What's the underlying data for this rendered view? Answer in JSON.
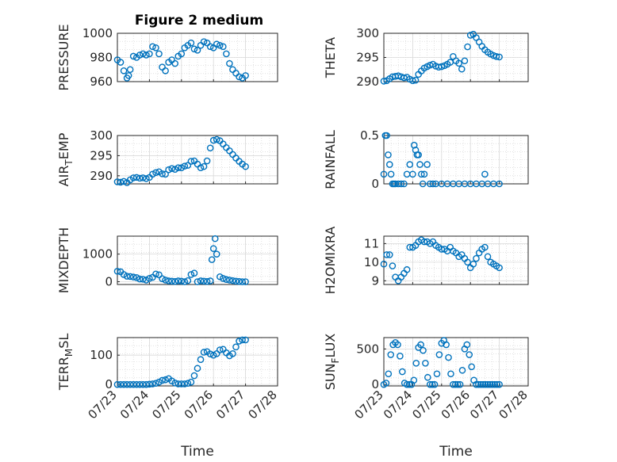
{
  "figure_title": "Figure 2 medium",
  "marker_color": "#0072bd",
  "chart_data": [
    {
      "type": "scatter",
      "ylabel": "PRESSURE",
      "ylim": [
        960,
        1000
      ],
      "yticks": [
        960,
        980,
        1000
      ],
      "xlim": [
        0,
        5
      ],
      "xtick_labels": [],
      "xlabel": "",
      "grid": true,
      "x": [
        0.0,
        0.1,
        0.2,
        0.3,
        0.35,
        0.4,
        0.5,
        0.6,
        0.7,
        0.8,
        0.9,
        1.0,
        1.1,
        1.2,
        1.3,
        1.4,
        1.5,
        1.6,
        1.7,
        1.8,
        1.9,
        2.0,
        2.1,
        2.2,
        2.3,
        2.4,
        2.5,
        2.6,
        2.7,
        2.8,
        2.9,
        3.0,
        3.1,
        3.2,
        3.3,
        3.4,
        3.5,
        3.6,
        3.7,
        3.8,
        3.9,
        4.0
      ],
      "y": [
        978,
        976,
        969,
        963,
        965,
        970,
        981,
        980,
        982,
        983,
        982,
        983,
        989,
        988,
        983,
        972,
        969,
        976,
        978,
        975,
        981,
        983,
        988,
        990,
        992,
        987,
        986,
        990,
        993,
        992,
        989,
        988,
        991,
        990,
        989,
        983,
        975,
        970,
        967,
        964,
        963,
        965
      ]
    },
    {
      "type": "scatter",
      "ylabel": "THETA",
      "ylim": [
        290,
        300
      ],
      "yticks": [
        290,
        295,
        300
      ],
      "xlim": [
        0,
        5
      ],
      "xtick_labels": [],
      "xlabel": "",
      "grid": true,
      "x": [
        0.0,
        0.1,
        0.2,
        0.3,
        0.4,
        0.5,
        0.6,
        0.7,
        0.8,
        0.9,
        1.0,
        1.1,
        1.2,
        1.3,
        1.4,
        1.5,
        1.6,
        1.7,
        1.8,
        1.9,
        2.0,
        2.1,
        2.2,
        2.3,
        2.4,
        2.5,
        2.6,
        2.7,
        2.8,
        2.9,
        3.0,
        3.1,
        3.2,
        3.3,
        3.4,
        3.5,
        3.6,
        3.7,
        3.8,
        3.9,
        4.0
      ],
      "y": [
        290.1,
        290.2,
        290.6,
        291.0,
        291.1,
        291.2,
        291.0,
        290.8,
        290.9,
        290.5,
        290.2,
        290.3,
        291.5,
        292.2,
        292.8,
        293.1,
        293.4,
        293.6,
        293.2,
        293.0,
        293.1,
        293.3,
        293.6,
        294.0,
        295.2,
        294.3,
        293.8,
        292.6,
        294.3,
        297.2,
        299.6,
        299.8,
        299.1,
        298.2,
        297.3,
        296.6,
        296.1,
        295.7,
        295.4,
        295.2,
        295.1
      ]
    },
    {
      "type": "scatter",
      "ylabel": "AIR_TEMP",
      "ylim": [
        288,
        300
      ],
      "yticks": [
        290,
        295,
        300
      ],
      "xlim": [
        0,
        5
      ],
      "xtick_labels": [],
      "xlabel": "",
      "grid": true,
      "x": [
        0.0,
        0.1,
        0.2,
        0.3,
        0.4,
        0.5,
        0.6,
        0.7,
        0.8,
        0.9,
        1.0,
        1.1,
        1.2,
        1.3,
        1.4,
        1.5,
        1.6,
        1.7,
        1.8,
        1.9,
        2.0,
        2.1,
        2.2,
        2.3,
        2.4,
        2.5,
        2.6,
        2.7,
        2.8,
        2.9,
        3.0,
        3.1,
        3.2,
        3.3,
        3.4,
        3.5,
        3.6,
        3.7,
        3.8,
        3.9,
        4.0
      ],
      "y": [
        288.5,
        288.4,
        288.6,
        288.3,
        289.0,
        289.5,
        289.6,
        289.4,
        289.5,
        289.3,
        289.6,
        290.4,
        290.8,
        291.0,
        290.5,
        290.4,
        291.5,
        291.8,
        291.6,
        292.0,
        292.0,
        292.4,
        292.6,
        293.6,
        293.7,
        292.9,
        292.0,
        292.3,
        293.7,
        296.9,
        298.8,
        299.0,
        298.7,
        297.9,
        297.0,
        296.2,
        295.3,
        294.4,
        293.6,
        292.9,
        292.3
      ]
    },
    {
      "type": "scatter",
      "ylabel": "RAINFALL",
      "ylim": [
        0,
        0.5
      ],
      "yticks": [
        0,
        0.5
      ],
      "xlim": [
        0,
        5
      ],
      "xtick_labels": [],
      "xlabel": "",
      "grid": true,
      "x": [
        0.0,
        0.05,
        0.1,
        0.15,
        0.2,
        0.25,
        0.3,
        0.35,
        0.4,
        0.5,
        0.6,
        0.7,
        0.8,
        0.9,
        1.0,
        1.05,
        1.1,
        1.15,
        1.2,
        1.25,
        1.3,
        1.35,
        1.4,
        1.5,
        1.6,
        1.7,
        1.8,
        2.0,
        2.2,
        2.4,
        2.6,
        2.8,
        3.0,
        3.2,
        3.4,
        3.5,
        3.6,
        3.8,
        4.0
      ],
      "y": [
        0.1,
        0.5,
        0.5,
        0.3,
        0.2,
        0.1,
        0,
        0,
        0,
        0,
        0,
        0,
        0.1,
        0.2,
        0.1,
        0.4,
        0.35,
        0.3,
        0.3,
        0.2,
        0.1,
        0.0,
        0.1,
        0.2,
        0,
        0,
        0,
        0,
        0,
        0,
        0,
        0,
        0,
        0,
        0,
        0.1,
        0,
        0,
        0
      ]
    },
    {
      "type": "scatter",
      "ylabel": "MIXDEPTH",
      "ylim": [
        -100,
        1650
      ],
      "yticks": [
        0,
        1000
      ],
      "xlim": [
        0,
        5
      ],
      "xtick_labels": [],
      "xlabel": "",
      "grid": true,
      "x": [
        0.0,
        0.1,
        0.2,
        0.3,
        0.4,
        0.5,
        0.6,
        0.7,
        0.8,
        0.9,
        1.0,
        1.1,
        1.2,
        1.3,
        1.4,
        1.5,
        1.6,
        1.7,
        1.8,
        1.9,
        2.0,
        2.1,
        2.2,
        2.3,
        2.4,
        2.5,
        2.6,
        2.7,
        2.8,
        2.9,
        2.95,
        3.0,
        3.05,
        3.1,
        3.2,
        3.3,
        3.4,
        3.5,
        3.6,
        3.7,
        3.8,
        3.9,
        4.0
      ],
      "y": [
        380,
        360,
        260,
        200,
        190,
        170,
        150,
        100,
        90,
        60,
        120,
        160,
        280,
        250,
        110,
        60,
        30,
        20,
        10,
        30,
        20,
        0,
        40,
        260,
        310,
        0,
        30,
        20,
        10,
        30,
        800,
        1200,
        1560,
        1000,
        180,
        120,
        80,
        60,
        40,
        20,
        10,
        0,
        0
      ]
    },
    {
      "type": "scatter",
      "ylabel": "H2OMIXRA",
      "ylim": [
        8.8,
        11.4
      ],
      "yticks": [
        9,
        10,
        11
      ],
      "xlim": [
        0,
        5
      ],
      "xtick_labels": [],
      "xlabel": "",
      "grid": true,
      "x": [
        0.0,
        0.1,
        0.2,
        0.3,
        0.4,
        0.5,
        0.6,
        0.7,
        0.8,
        0.9,
        1.0,
        1.1,
        1.2,
        1.3,
        1.4,
        1.5,
        1.6,
        1.7,
        1.8,
        1.9,
        2.0,
        2.1,
        2.2,
        2.3,
        2.4,
        2.5,
        2.6,
        2.7,
        2.8,
        2.9,
        3.0,
        3.1,
        3.2,
        3.3,
        3.4,
        3.5,
        3.6,
        3.7,
        3.8,
        3.9,
        4.0
      ],
      "y": [
        9.9,
        10.4,
        10.4,
        9.8,
        9.2,
        9.0,
        9.2,
        9.4,
        9.6,
        10.8,
        10.8,
        10.9,
        11.1,
        11.2,
        11.1,
        11.1,
        11.0,
        11.1,
        10.9,
        10.8,
        10.7,
        10.7,
        10.6,
        10.8,
        10.6,
        10.5,
        10.3,
        10.4,
        10.2,
        10.0,
        9.7,
        9.9,
        10.2,
        10.5,
        10.7,
        10.8,
        10.3,
        10.0,
        9.9,
        9.8,
        9.7
      ]
    },
    {
      "type": "scatter",
      "ylabel": "TERR_MSL",
      "ylim": [
        -5,
        160
      ],
      "yticks": [
        0,
        100
      ],
      "xlim": [
        0,
        5
      ],
      "xtick_labels": [
        "07/23",
        "07/24",
        "07/25",
        "07/26",
        "07/27",
        "07/28"
      ],
      "xlabel": "Time",
      "grid": true,
      "x": [
        0.0,
        0.1,
        0.2,
        0.3,
        0.4,
        0.5,
        0.6,
        0.7,
        0.8,
        0.9,
        1.0,
        1.1,
        1.2,
        1.3,
        1.4,
        1.5,
        1.6,
        1.7,
        1.8,
        1.9,
        2.0,
        2.1,
        2.2,
        2.3,
        2.4,
        2.5,
        2.6,
        2.7,
        2.8,
        2.9,
        3.0,
        3.1,
        3.2,
        3.3,
        3.4,
        3.5,
        3.6,
        3.7,
        3.8,
        3.9,
        4.0
      ],
      "y": [
        0,
        0,
        0,
        0,
        0,
        0,
        0,
        0,
        0,
        0,
        1,
        2,
        4,
        8,
        14,
        16,
        20,
        12,
        5,
        2,
        2,
        2,
        4,
        8,
        30,
        55,
        85,
        110,
        112,
        104,
        100,
        105,
        118,
        120,
        108,
        98,
        105,
        128,
        148,
        152,
        152
      ]
    },
    {
      "type": "scatter",
      "ylabel": "SUN_FLUX",
      "ylim": [
        -20,
        660
      ],
      "yticks": [
        0,
        500
      ],
      "xlim": [
        0,
        5
      ],
      "xtick_labels": [
        "07/23",
        "07/24",
        "07/25",
        "07/26",
        "07/27",
        "07/28"
      ],
      "xlabel": "Time",
      "grid": true,
      "x": [
        0.0,
        0.08,
        0.16,
        0.24,
        0.32,
        0.4,
        0.48,
        0.56,
        0.64,
        0.72,
        0.8,
        0.88,
        0.96,
        1.04,
        1.12,
        1.2,
        1.28,
        1.36,
        1.44,
        1.52,
        1.6,
        1.68,
        1.76,
        1.84,
        1.92,
        2.0,
        2.08,
        2.16,
        2.24,
        2.32,
        2.4,
        2.48,
        2.56,
        2.64,
        2.72,
        2.8,
        2.88,
        2.96,
        3.04,
        3.12,
        3.2,
        3.28,
        3.36,
        3.44,
        3.52,
        3.6,
        3.68,
        3.76,
        3.84,
        3.92,
        4.0
      ],
      "y": [
        0,
        20,
        150,
        420,
        560,
        590,
        560,
        400,
        180,
        20,
        0,
        0,
        0,
        60,
        300,
        520,
        560,
        480,
        300,
        100,
        0,
        0,
        0,
        150,
        420,
        580,
        620,
        560,
        380,
        150,
        0,
        0,
        0,
        0,
        200,
        500,
        560,
        420,
        250,
        60,
        0,
        0,
        0,
        0,
        0,
        0,
        0,
        0,
        0,
        0,
        0
      ]
    }
  ]
}
